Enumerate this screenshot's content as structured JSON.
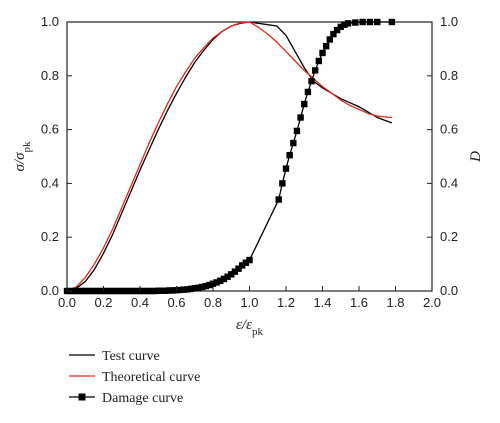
{
  "chart_data": {
    "type": "line",
    "xlabel": "ε/ε_pk",
    "ylabel": "σ/σ_pk",
    "y2label": "D",
    "xlim": [
      0.0,
      2.0
    ],
    "ylim": [
      0.0,
      1.0
    ],
    "y2lim": [
      0.0,
      1.0
    ],
    "xticks": [
      "0.0",
      "0.2",
      "0.4",
      "0.6",
      "0.8",
      "1.0",
      "1.2",
      "1.4",
      "1.6",
      "1.8",
      "2.0"
    ],
    "yticks": [
      "0.0",
      "0.2",
      "0.4",
      "0.6",
      "0.8",
      "1.0"
    ],
    "y2ticks": [
      "0.0",
      "0.2",
      "0.4",
      "0.6",
      "0.8",
      "1.0"
    ],
    "legend_position": "bottom-left",
    "series": [
      {
        "name": "Test curve",
        "axis": "left",
        "color": "#000000",
        "marker": "none",
        "x": [
          0.0,
          0.05,
          0.1,
          0.15,
          0.2,
          0.25,
          0.3,
          0.35,
          0.4,
          0.45,
          0.5,
          0.55,
          0.6,
          0.65,
          0.7,
          0.75,
          0.8,
          0.85,
          0.9,
          0.95,
          1.0,
          1.05,
          1.1,
          1.15,
          1.2,
          1.25,
          1.3,
          1.35,
          1.4,
          1.45,
          1.5,
          1.55,
          1.6,
          1.65,
          1.7,
          1.78
        ],
        "y": [
          0.0,
          0.01,
          0.035,
          0.08,
          0.14,
          0.21,
          0.29,
          0.37,
          0.45,
          0.525,
          0.6,
          0.67,
          0.735,
          0.795,
          0.85,
          0.895,
          0.935,
          0.965,
          0.985,
          0.995,
          1.0,
          0.995,
          0.99,
          0.985,
          0.95,
          0.89,
          0.83,
          0.78,
          0.755,
          0.735,
          0.715,
          0.7,
          0.685,
          0.665,
          0.645,
          0.625
        ]
      },
      {
        "name": "Theoretical curve",
        "axis": "left",
        "color": "#e0261e",
        "marker": "none",
        "x": [
          0.0,
          0.05,
          0.1,
          0.15,
          0.2,
          0.25,
          0.3,
          0.35,
          0.4,
          0.45,
          0.5,
          0.55,
          0.6,
          0.65,
          0.7,
          0.75,
          0.8,
          0.85,
          0.9,
          0.95,
          1.0,
          1.05,
          1.1,
          1.15,
          1.2,
          1.25,
          1.3,
          1.35,
          1.4,
          1.45,
          1.5,
          1.55,
          1.6,
          1.65,
          1.7,
          1.78
        ],
        "y": [
          0.0,
          0.015,
          0.05,
          0.1,
          0.16,
          0.23,
          0.31,
          0.39,
          0.47,
          0.55,
          0.625,
          0.695,
          0.76,
          0.815,
          0.865,
          0.905,
          0.94,
          0.965,
          0.985,
          0.997,
          1.0,
          0.98,
          0.955,
          0.925,
          0.89,
          0.855,
          0.82,
          0.79,
          0.76,
          0.735,
          0.71,
          0.69,
          0.675,
          0.66,
          0.65,
          0.645
        ]
      },
      {
        "name": "Damage curve",
        "axis": "right",
        "color": "#000000",
        "marker": "square",
        "x": [
          0.0,
          0.02,
          0.04,
          0.06,
          0.08,
          0.1,
          0.12,
          0.14,
          0.16,
          0.18,
          0.2,
          0.22,
          0.24,
          0.26,
          0.28,
          0.3,
          0.32,
          0.34,
          0.36,
          0.38,
          0.4,
          0.42,
          0.44,
          0.46,
          0.48,
          0.5,
          0.52,
          0.54,
          0.56,
          0.58,
          0.6,
          0.62,
          0.64,
          0.66,
          0.68,
          0.7,
          0.72,
          0.74,
          0.76,
          0.78,
          0.8,
          0.82,
          0.84,
          0.86,
          0.88,
          0.9,
          0.92,
          0.94,
          0.96,
          0.98,
          1.0,
          1.16,
          1.18,
          1.2,
          1.22,
          1.24,
          1.26,
          1.28,
          1.3,
          1.32,
          1.34,
          1.36,
          1.38,
          1.4,
          1.42,
          1.44,
          1.46,
          1.48,
          1.5,
          1.52,
          1.54,
          1.58,
          1.62,
          1.66,
          1.7,
          1.78
        ],
        "y": [
          0.0,
          0.0,
          0.0,
          0.0,
          0.0,
          0.0,
          0.0,
          0.0,
          0.0,
          0.0,
          0.0,
          0.0,
          0.0,
          0.0,
          0.0,
          0.0,
          0.0,
          0.0,
          0.0,
          0.0,
          0.0,
          0.0,
          0.0,
          0.0,
          0.0,
          0.001,
          0.001,
          0.001,
          0.002,
          0.002,
          0.003,
          0.004,
          0.005,
          0.006,
          0.008,
          0.01,
          0.012,
          0.015,
          0.018,
          0.022,
          0.027,
          0.032,
          0.038,
          0.045,
          0.053,
          0.062,
          0.072,
          0.083,
          0.095,
          0.105,
          0.115,
          0.34,
          0.4,
          0.455,
          0.505,
          0.55,
          0.595,
          0.645,
          0.695,
          0.74,
          0.78,
          0.82,
          0.855,
          0.885,
          0.91,
          0.935,
          0.955,
          0.97,
          0.982,
          0.99,
          0.995,
          0.998,
          1.0,
          1.0,
          1.0,
          1.0
        ]
      }
    ]
  }
}
